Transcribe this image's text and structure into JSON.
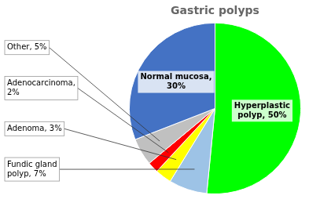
{
  "chart_data": {
    "type": "pie",
    "title": "Gastric polyps",
    "values": [
      50,
      7,
      3,
      2,
      5,
      30
    ],
    "value_labels": [
      "Hyperplastic\npolyp, 50%",
      "Fundic gland\npolyp, 7%",
      "Adenoma, 3%",
      "Adenocarcinoma,\n2%",
      "Other, 5%",
      "Normal mucosa,\n30%"
    ],
    "colors": [
      "#00ff00",
      "#9dc3e6",
      "#ffff00",
      "#ff0000",
      "#c0c0c0",
      "#4472c4"
    ],
    "data_labels": true
  }
}
